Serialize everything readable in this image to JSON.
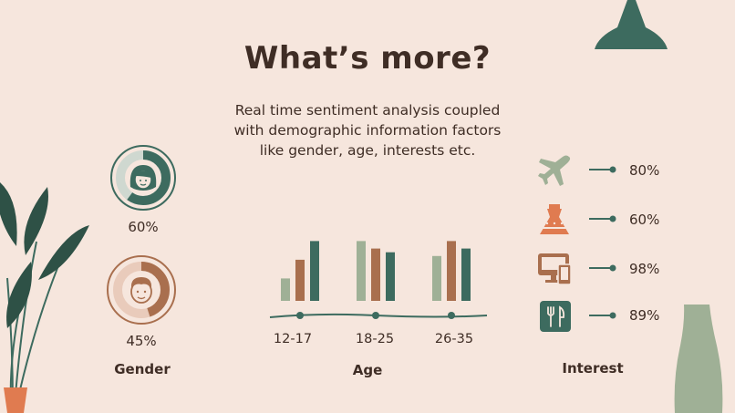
{
  "title": "What’s more?",
  "subtitle": "Real time sentiment analysis coupled with demographic information factors like gender, age, interests etc.",
  "colors": {
    "background": "#f6e6dd",
    "dark_green": "#3d6b5f",
    "sage": "#9fb096",
    "brown": "#a96f4e",
    "orange": "#e07b50",
    "text": "#3f2d25"
  },
  "gender": {
    "label": "Gender",
    "items": [
      {
        "icon": "female-face-icon",
        "percent": "60%",
        "value": 0.6,
        "color": "#3d6b5f"
      },
      {
        "icon": "male-face-icon",
        "percent": "45%",
        "value": 0.45,
        "color": "#a96f4e"
      }
    ]
  },
  "age": {
    "label": "Age"
  },
  "interest": {
    "label": "Interest",
    "items": [
      {
        "icon": "airplane-icon",
        "percent": "80%",
        "value": 0.8
      },
      {
        "icon": "dress-icon",
        "percent": "60%",
        "value": 0.6
      },
      {
        "icon": "devices-icon",
        "percent": "98%",
        "value": 0.98
      },
      {
        "icon": "restaurant-icon",
        "percent": "89%",
        "value": 0.89
      }
    ]
  },
  "chart_data": {
    "type": "bar",
    "categories": [
      "12-17",
      "18-25",
      "26-35"
    ],
    "series": [
      {
        "values": [
          30,
          80,
          60
        ],
        "color": "#9fb096"
      },
      {
        "values": [
          55,
          70,
          80
        ],
        "color": "#a96f4e"
      },
      {
        "values": [
          80,
          65,
          70
        ],
        "color": "#3d6b5f"
      }
    ],
    "ylim": [
      0,
      100
    ],
    "grid": false
  }
}
